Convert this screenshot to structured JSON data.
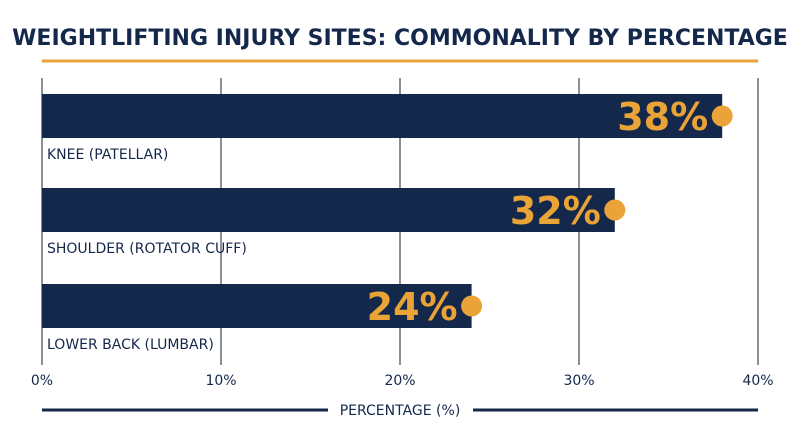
{
  "chart_data": {
    "type": "bar",
    "orientation": "horizontal",
    "title": "WEIGHTLIFTING INJURY SITES: COMMONALITY BY PERCENTAGE",
    "xlabel": "PERCENTAGE (%)",
    "ylabel": "",
    "categories": [
      "KNEE (PATELLAR)",
      "SHOULDER (ROTATOR CUFF)",
      "LOWER BACK (LUMBAR)"
    ],
    "values": [
      38,
      32,
      24
    ],
    "value_labels": [
      "38%",
      "32%",
      "24%"
    ],
    "xlim": [
      0,
      40
    ],
    "xticks": [
      {
        "value": 0,
        "label": "0%"
      },
      {
        "value": 10,
        "label": "10%"
      },
      {
        "value": 20,
        "label": "20%"
      },
      {
        "value": 30,
        "label": "30%"
      },
      {
        "value": 40,
        "label": "40%"
      }
    ],
    "grid": true,
    "colors": {
      "bar": "#14284b",
      "accent": "#eaa336",
      "text": "#14284b",
      "grid": "#55606e"
    }
  }
}
